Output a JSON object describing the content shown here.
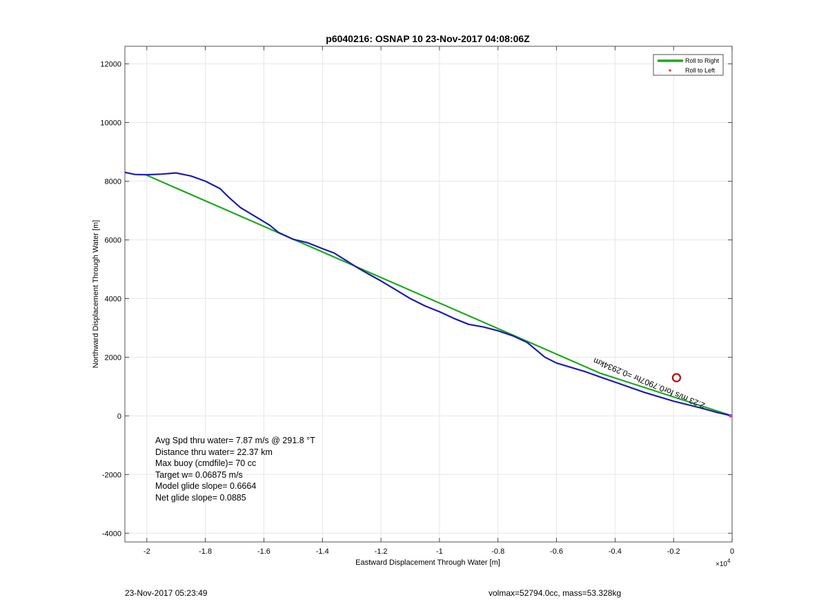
{
  "chart_data": {
    "type": "line",
    "title": "p6040216: OSNAP 10 23-Nov-2017 04:08:06Z",
    "xlabel": "Eastward Displacement Through Water [m]",
    "ylabel": "Northward Displacement Through Water [m]",
    "x_multiplier_label": "×10",
    "x_multiplier_exp": "4",
    "xlim": [
      -2.075,
      0
    ],
    "ylim": [
      -4300,
      12600
    ],
    "xticks": [
      -2,
      -1.8,
      -1.6,
      -1.4,
      -1.2,
      -1,
      -0.8,
      -0.6,
      -0.4,
      -0.2,
      0
    ],
    "xtick_labels": [
      "-2",
      "-1.8",
      "-1.6",
      "-1.4",
      "-1.2",
      "-1",
      "-0.8",
      "-0.6",
      "-0.4",
      "-0.2",
      "0"
    ],
    "yticks": [
      -4000,
      -2000,
      0,
      2000,
      4000,
      6000,
      8000,
      10000,
      12000
    ],
    "ytick_labels": [
      "-4000",
      "-2000",
      "0",
      "2000",
      "4000",
      "6000",
      "8000",
      "10000",
      "12000"
    ],
    "grid": true,
    "legend_position": "top-right",
    "series": [
      {
        "name": "Roll to Right",
        "color": "#1aaa1a",
        "x": [
          -2.0,
          -0.45,
          0
        ],
        "y": [
          8200,
          1450,
          0
        ]
      },
      {
        "name": "Roll to Left",
        "color": "#ff0000",
        "marker": "dot",
        "x": [],
        "y": []
      },
      {
        "color": "#1a1ab8",
        "x": [
          -2.075,
          -2.04,
          -2.0,
          -1.95,
          -1.9,
          -1.85,
          -1.8,
          -1.75,
          -1.72,
          -1.68,
          -1.63,
          -1.58,
          -1.55,
          -1.5,
          -1.45,
          -1.4,
          -1.36,
          -1.32,
          -1.28,
          -1.24,
          -1.2,
          -1.15,
          -1.1,
          -1.05,
          -1.0,
          -0.95,
          -0.9,
          -0.85,
          -0.8,
          -0.75,
          -0.7,
          -0.67,
          -0.64,
          -0.6,
          -0.55,
          -0.5,
          -0.45,
          -0.4,
          -0.3,
          -0.2,
          -0.1,
          -0.05,
          0
        ],
        "y": [
          8300,
          8230,
          8220,
          8240,
          8280,
          8180,
          8000,
          7750,
          7450,
          7100,
          6800,
          6500,
          6250,
          6020,
          5900,
          5700,
          5550,
          5300,
          5050,
          4820,
          4600,
          4300,
          4000,
          3750,
          3550,
          3320,
          3120,
          3030,
          2900,
          2730,
          2500,
          2250,
          2000,
          1800,
          1650,
          1500,
          1320,
          1150,
          800,
          500,
          250,
          110,
          0
        ]
      }
    ],
    "circle_marker": {
      "x": -0.19,
      "y": 1300,
      "color": "#cc0000"
    },
    "rotated_annotation": "2.23 m/s for0.7907hr =0.2934km",
    "stats": [
      "Avg Spd thru water=  7.87 m/s @ 291.8 °T",
      "Distance thru water= 22.37 km",
      "Max buoy (cmdfile)= 70 cc",
      "Target w= 0.06875 m/s",
      "Model glide slope= 0.6664",
      "Net glide slope= 0.0885"
    ]
  },
  "footer": {
    "timestamp": "23-Nov-2017 05:23:49",
    "info": "volmax=52794.0cc, mass=53.328kg"
  }
}
